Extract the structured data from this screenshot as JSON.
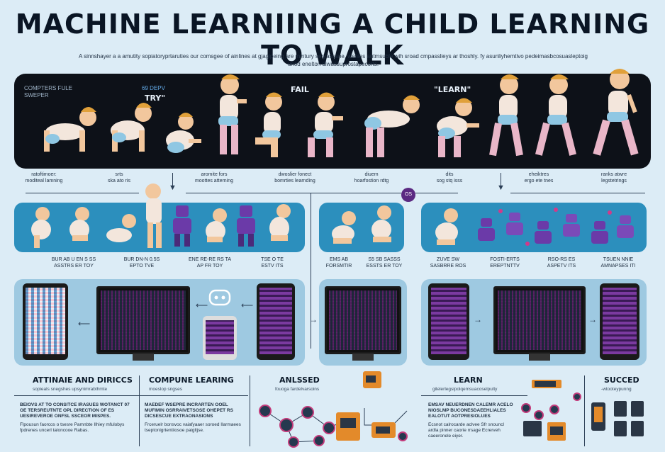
{
  "title": "MACHINE LEARNIING A CHILD LEARNING TO WALK",
  "subtitle": "A sinnshayer a a amutity sopiatoryprtaruties our comsgee of ainlines at gjagipeing are mintury seryasusne, wehies autmsuble wih sroad cmpasslieys ar thoshly. fy asunliyhemtivo pedeimasbcosuasleptoig unod enelton diwussuprostapecorts.",
  "band": {
    "left_label": "COMPTERS FULE SWEPER",
    "small_label": "69 DEPV",
    "stage_try": "TRY\"",
    "stage_fail": "FAIL",
    "stage_learn": "\"LEARN\""
  },
  "band_captions": [
    {
      "line1": "ratoftimoer:",
      "line2": "moditeal lamning"
    },
    {
      "line1": "srts",
      "line2": "ska ato ris"
    },
    {
      "line1": "aromite fors",
      "line2": "moottes atterning"
    },
    {
      "line1": "dwoslier fonect",
      "line2": "bomrties learnding"
    },
    {
      "line1": "diuem",
      "line2": "hoarfostion rdtg"
    },
    {
      "line1": "dits",
      "line2": "sog stq isss"
    },
    {
      "line1": "eheiktres",
      "line2": "ergo ete tnes"
    },
    {
      "line1": "ranks atwre",
      "line2": "legstetrings"
    }
  ],
  "badge": "OS",
  "row2_captions": [
    {
      "line1": "BUR AB U EN S SS",
      "line2": "ASSTRS ER TOY"
    },
    {
      "line1": "BUR DN-N 0.5S",
      "line2": "EPTO TVE"
    },
    {
      "line1": "ENE RE-RE RS TA",
      "line2": "AP FR TOY"
    },
    {
      "line1": "TSE O TE",
      "line2": "ESTV ITS"
    },
    {
      "line1": "EMS AB",
      "line2": "FORSMTIR"
    },
    {
      "line1": "S5 SB SASSS",
      "line2": "ESSTS ER TOY"
    },
    {
      "line1": "ZUVE SW",
      "line2": "SASBRRE ROS"
    },
    {
      "line1": "FOSTI-ERTS",
      "line2": "EREPTNTTV"
    },
    {
      "line1": "RSO-RS ES",
      "line2": "ASPETV ITS"
    },
    {
      "line1": "TSUEN NNIE",
      "line2": "AMNAPSES ITI"
    }
  ],
  "sections": {
    "attitude": {
      "title": "ATTINAIE AND DIRICCS",
      "sub": "sopieals snegshes upsynimrabthmte"
    },
    "compute": {
      "title": "COMPUNE LEARING",
      "sub": "moeslop sngses"
    },
    "analyzed": {
      "title": "ANLSSED",
      "sub": "fouoga fardelvarsoins"
    },
    "learn": {
      "title": "LEARN",
      "sub": "gilelerlegsipolqemsuacoselpulty"
    },
    "succeed": {
      "title": "SUCCED",
      "sub": "-wtooteypunng"
    }
  },
  "bottom_texts": [
    {
      "heading": "BEIOVS AT TO CONSITCE IRASUES WOTANCT 07 OE TERSREUTNTE OPL DIRECTION OF ES UESIREVEROE ONFSL SSCEOR MISPES.",
      "body": "Flpousun faorcos o tsesre Pamnbte Ilhiey mfulobys fpdrenes uncerl taloncooe Rabas."
    },
    {
      "heading": "MAEDEF WSEPRE INCRARTEN OOEL MUFIMIN OSRRAIVETSOSE OHEPET RS DICSESCUE EXTRAONASIONS",
      "body": "Frceruelr bonsvoc vaiafyaaer soroed Ilarmaees tseptonigrtentiiosoe paigltjse."
    },
    {
      "heading": "EMSAV NEUERDNEN CALEMR ACELO NIOSLMP BUCONESDAEEHLIALES EALOTUT AOTPRESIOLUES",
      "body": "Ecsnot calrocarde aclvee Sfr snouncl ardla pinner caorie rrsage Ecrerveh caeeronele eiyer."
    }
  ]
}
